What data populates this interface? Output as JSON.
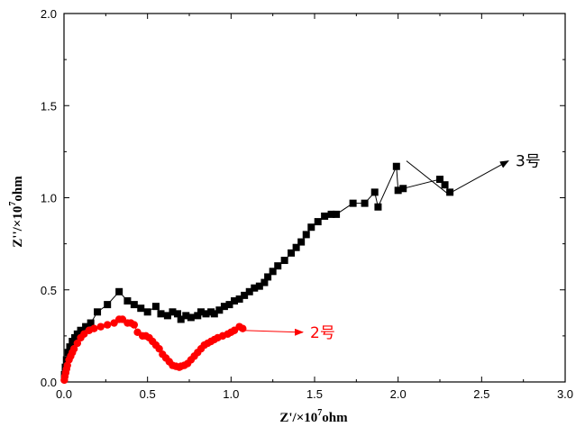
{
  "chart_data": {
    "type": "scatter",
    "title": "",
    "xlabel": "Z'/×10",
    "xlabel_exp": "7",
    "xlabel_unit": "ohm",
    "ylabel": "Z''/×10",
    "ylabel_exp": "7",
    "ylabel_unit": "ohm",
    "xlim": [
      0,
      3.0
    ],
    "ylim": [
      0,
      2.0
    ],
    "xticks": [
      "0.0",
      "0.5",
      "1.0",
      "1.5",
      "2.0",
      "2.5",
      "3.0"
    ],
    "yticks": [
      "0.0",
      "0.5",
      "1.0",
      "1.5",
      "2.0"
    ],
    "grid": false,
    "legend": "none",
    "series": [
      {
        "name": "3号",
        "color": "#000000",
        "marker": "square",
        "connected": true,
        "x": [
          0.003,
          0.008,
          0.015,
          0.025,
          0.035,
          0.05,
          0.065,
          0.08,
          0.1,
          0.13,
          0.16,
          0.2,
          0.26,
          0.33,
          0.38,
          0.42,
          0.46,
          0.5,
          0.55,
          0.58,
          0.62,
          0.65,
          0.68,
          0.7,
          0.73,
          0.76,
          0.8,
          0.82,
          0.85,
          0.88,
          0.9,
          0.93,
          0.96,
          0.99,
          1.02,
          1.05,
          1.08,
          1.11,
          1.14,
          1.17,
          1.2,
          1.22,
          1.25,
          1.28,
          1.32,
          1.36,
          1.39,
          1.42,
          1.45,
          1.48,
          1.52,
          1.56,
          1.6,
          1.63,
          1.73,
          1.8,
          1.86,
          1.88,
          1.99,
          2.0,
          2.03,
          2.25,
          2.28,
          2.31
        ],
        "y": [
          0.04,
          0.08,
          0.12,
          0.16,
          0.19,
          0.22,
          0.24,
          0.26,
          0.28,
          0.3,
          0.32,
          0.38,
          0.42,
          0.49,
          0.44,
          0.42,
          0.4,
          0.38,
          0.41,
          0.37,
          0.36,
          0.38,
          0.37,
          0.34,
          0.36,
          0.35,
          0.36,
          0.38,
          0.37,
          0.38,
          0.37,
          0.39,
          0.41,
          0.42,
          0.44,
          0.45,
          0.47,
          0.49,
          0.51,
          0.52,
          0.54,
          0.57,
          0.6,
          0.63,
          0.66,
          0.7,
          0.73,
          0.76,
          0.8,
          0.84,
          0.87,
          0.9,
          0.91,
          0.91,
          0.97,
          0.97,
          1.03,
          0.95,
          1.17,
          1.04,
          1.05,
          1.1,
          1.07,
          1.03
        ]
      },
      {
        "name": "2号",
        "color": "#ff0000",
        "marker": "circle",
        "connected": true,
        "x": [
          0.002,
          0.005,
          0.01,
          0.015,
          0.02,
          0.03,
          0.04,
          0.05,
          0.06,
          0.08,
          0.1,
          0.12,
          0.15,
          0.18,
          0.22,
          0.26,
          0.3,
          0.33,
          0.35,
          0.38,
          0.4,
          0.42,
          0.44,
          0.47,
          0.49,
          0.51,
          0.53,
          0.55,
          0.57,
          0.59,
          0.61,
          0.63,
          0.65,
          0.67,
          0.69,
          0.7,
          0.72,
          0.74,
          0.76,
          0.78,
          0.8,
          0.82,
          0.84,
          0.86,
          0.88,
          0.9,
          0.92,
          0.95,
          0.98,
          1.0,
          1.02,
          1.05,
          1.07
        ],
        "y": [
          0.01,
          0.03,
          0.05,
          0.07,
          0.09,
          0.12,
          0.14,
          0.16,
          0.18,
          0.21,
          0.24,
          0.26,
          0.28,
          0.29,
          0.3,
          0.31,
          0.32,
          0.34,
          0.34,
          0.32,
          0.32,
          0.31,
          0.27,
          0.25,
          0.25,
          0.24,
          0.22,
          0.2,
          0.18,
          0.15,
          0.13,
          0.11,
          0.09,
          0.085,
          0.08,
          0.085,
          0.09,
          0.1,
          0.12,
          0.14,
          0.16,
          0.18,
          0.2,
          0.21,
          0.22,
          0.23,
          0.24,
          0.25,
          0.26,
          0.27,
          0.28,
          0.3,
          0.29
        ]
      }
    ],
    "annotations": [
      {
        "text": "3号",
        "color": "#000000",
        "arrow_from": [
          2.05,
          1.2
        ],
        "arrow_to": [
          2.3,
          1.02
        ],
        "arrow_end": [
          2.66,
          1.2
        ]
      },
      {
        "text": "2号",
        "color": "#ff0000",
        "arrow_from": [
          1.07,
          0.28
        ],
        "arrow_to": [
          1.4,
          0.27
        ],
        "arrow_end": [
          1.43,
          0.27
        ]
      }
    ]
  }
}
